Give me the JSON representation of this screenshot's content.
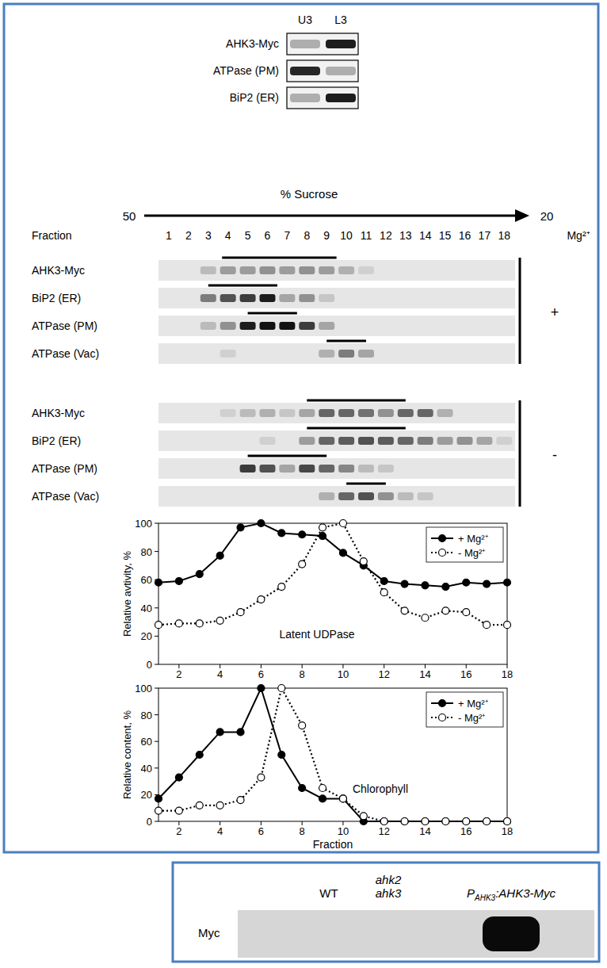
{
  "chart_data": [
    {
      "type": "line",
      "title": "Latent UDPase",
      "y_label": "Relative avtivity, %",
      "x": [
        1,
        2,
        3,
        4,
        5,
        6,
        7,
        8,
        9,
        10,
        11,
        12,
        13,
        14,
        15,
        16,
        17,
        18
      ],
      "series": [
        {
          "name": "+ Mg²⁺",
          "color": "#000000",
          "marker": "filled-circle",
          "line_style": "solid",
          "values": [
            58,
            59,
            64,
            77,
            97,
            100,
            93,
            92,
            91,
            79,
            70,
            59,
            57,
            56,
            55,
            58,
            57,
            58
          ]
        },
        {
          "name": "- Mg²⁺",
          "color": "#000000",
          "marker": "open-circle",
          "line_style": "dotted",
          "values": [
            28,
            29,
            29,
            31,
            37,
            46,
            55,
            71,
            97,
            100,
            73,
            51,
            38,
            33,
            38,
            37,
            28,
            28
          ]
        }
      ],
      "xlim": [
        1,
        18
      ],
      "xticks": [
        2,
        4,
        6,
        8,
        10,
        12,
        14,
        16,
        18
      ],
      "ylim": [
        0,
        100
      ],
      "yticks": [
        0,
        20,
        40,
        60,
        80,
        100
      ],
      "legend": "upper right"
    },
    {
      "type": "line",
      "title": "Chlorophyll",
      "y_label": "Relative content, %",
      "x_label": "Fraction",
      "x": [
        1,
        2,
        3,
        4,
        5,
        6,
        7,
        8,
        9,
        10,
        11,
        12,
        13,
        14,
        15,
        16,
        17,
        18
      ],
      "series": [
        {
          "name": "+ Mg²⁺",
          "color": "#000000",
          "marker": "filled-circle",
          "line_style": "solid",
          "values": [
            17,
            33,
            50,
            67,
            67,
            100,
            50,
            25,
            17,
            17,
            0,
            0,
            0,
            0,
            0,
            0,
            0,
            0
          ]
        },
        {
          "name": "- Mg²⁺",
          "color": "#000000",
          "marker": "open-circle",
          "line_style": "dotted",
          "values": [
            8,
            8,
            12,
            12,
            16,
            33,
            100,
            72,
            25,
            17,
            4,
            0,
            0,
            0,
            0,
            0,
            0,
            0
          ]
        }
      ],
      "xlim": [
        1,
        18
      ],
      "xticks": [
        2,
        4,
        6,
        8,
        10,
        12,
        14,
        16,
        18
      ],
      "ylim": [
        0,
        100
      ],
      "yticks": [
        0,
        20,
        40,
        60,
        80,
        100
      ],
      "legend": "upper right"
    }
  ],
  "top_blot": {
    "lanes": [
      "U3",
      "L3"
    ],
    "rows": [
      {
        "label": "AHK3-Myc",
        "intensities": [
          0.3,
          0.95
        ]
      },
      {
        "label": "ATPase (PM)",
        "intensities": [
          0.9,
          0.3
        ]
      },
      {
        "label": "BiP2 (ER)",
        "intensities": [
          0.3,
          0.95
        ]
      }
    ]
  },
  "gradient": {
    "axis_label": "% Sucrose",
    "start": 50,
    "end": 20,
    "fraction_label": "Fraction",
    "fractions": [
      1,
      2,
      3,
      4,
      5,
      6,
      7,
      8,
      9,
      10,
      11,
      12,
      13,
      14,
      15,
      16,
      17,
      18
    ],
    "condition_label": "Mg²⁺",
    "groups": [
      {
        "condition": "+",
        "rows": [
          {
            "label": "AHK3-Myc",
            "range": [
              3.7,
              9.5
            ],
            "intensities": [
              0,
              0,
              0.2,
              0.35,
              0.35,
              0.4,
              0.35,
              0.4,
              0.35,
              0.25,
              0.1,
              0,
              0,
              0,
              0,
              0,
              0,
              0
            ]
          },
          {
            "label": "BiP2 (ER)",
            "range": [
              3,
              6.5
            ],
            "intensities": [
              0,
              0,
              0.5,
              0.7,
              0.8,
              0.95,
              0.3,
              0.4,
              0.15,
              0,
              0,
              0,
              0,
              0,
              0,
              0,
              0,
              0
            ]
          },
          {
            "label": "ATPase (PM)",
            "range": [
              5,
              7.5
            ],
            "intensities": [
              0,
              0,
              0.2,
              0.4,
              0.95,
              1,
              1,
              0.8,
              0.3,
              0,
              0,
              0,
              0,
              0,
              0,
              0,
              0,
              0
            ]
          },
          {
            "label": "ATPase (Vac)",
            "range": [
              9,
              11
            ],
            "intensities": [
              0,
              0,
              0,
              0.1,
              0,
              0,
              0,
              0,
              0.25,
              0.5,
              0.3,
              0,
              0,
              0,
              0,
              0,
              0,
              0
            ]
          }
        ]
      },
      {
        "condition": "-",
        "rows": [
          {
            "label": "AHK3-Myc",
            "range": [
              8,
              13
            ],
            "intensities": [
              0,
              0,
              0,
              0.1,
              0.2,
              0.25,
              0.15,
              0.3,
              0.6,
              0.6,
              0.55,
              0.4,
              0.6,
              0.6,
              0.25,
              0,
              0,
              0
            ]
          },
          {
            "label": "BiP2 (ER)",
            "range": [
              8,
              13
            ],
            "intensities": [
              0,
              0,
              0,
              0,
              0,
              0.1,
              0,
              0.35,
              0.6,
              0.65,
              0.7,
              0.65,
              0.6,
              0.5,
              0.35,
              0.4,
              0.3,
              0.1
            ]
          },
          {
            "label": "ATPase (PM)",
            "range": [
              5,
              9
            ],
            "intensities": [
              0,
              0,
              0,
              0,
              0.8,
              0.7,
              0.3,
              0.75,
              0.6,
              0.45,
              0.2,
              0.15,
              0,
              0,
              0,
              0,
              0,
              0
            ]
          },
          {
            "label": "ATPase (Vac)",
            "range": [
              10,
              12
            ],
            "intensities": [
              0,
              0,
              0,
              0,
              0,
              0,
              0,
              0,
              0.25,
              0.6,
              0.7,
              0.4,
              0.2,
              0.15,
              0,
              0,
              0,
              0
            ]
          }
        ]
      }
    ]
  },
  "bottom_blot": {
    "columns": [
      {
        "lines": [
          "WT"
        ]
      },
      {
        "lines": [
          "ahk2",
          "ahk3"
        ]
      },
      {
        "main": "P",
        "sub": "AHK3",
        "rest": ":AHK3-Myc"
      }
    ],
    "row_label": "Myc",
    "intensities": [
      0,
      0,
      1
    ]
  }
}
